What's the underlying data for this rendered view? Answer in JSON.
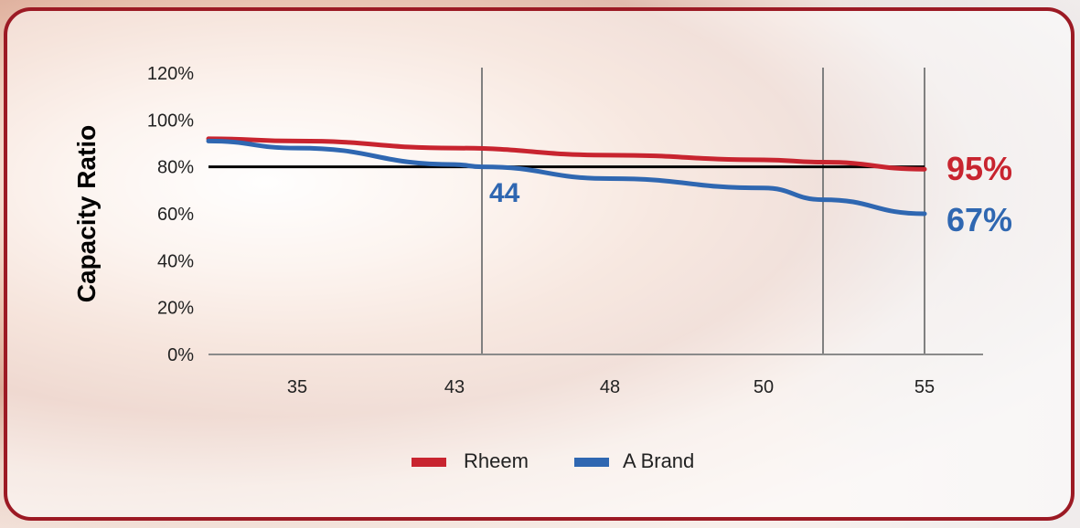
{
  "chart_data": {
    "type": "line",
    "ylabel": "Capacity Ratio",
    "xlabel": "",
    "title": "",
    "y_ticks": [
      "0%",
      "20%",
      "40%",
      "60%",
      "80%",
      "100%",
      "120%"
    ],
    "ylim": [
      0,
      120
    ],
    "categories": [
      "35",
      "43",
      "48",
      "50",
      "55"
    ],
    "reference_line_y": 80,
    "vertical_markers": [
      "44",
      "52",
      "55"
    ],
    "series": [
      {
        "name": "Rheem",
        "color": "#c8242f",
        "x": [
          32,
          35,
          43,
          48,
          50,
          52,
          55
        ],
        "y": [
          92,
          91,
          88,
          85,
          83,
          82,
          79
        ]
      },
      {
        "name": "A Brand",
        "color": "#2f67b1",
        "x": [
          32,
          35,
          43,
          44,
          48,
          50,
          52,
          55
        ],
        "y": [
          91,
          88,
          81,
          80,
          75,
          71,
          66,
          60
        ]
      }
    ],
    "annotations": [
      {
        "text": "95%",
        "series": "Rheem",
        "color": "#c8242f"
      },
      {
        "text": "67%",
        "series": "A Brand",
        "color": "#2f67b1"
      },
      {
        "text": "44",
        "color": "#2f67b1"
      }
    ],
    "legend": {
      "position": "bottom-center",
      "items": [
        "Rheem",
        "A Brand"
      ]
    },
    "grid": false
  }
}
